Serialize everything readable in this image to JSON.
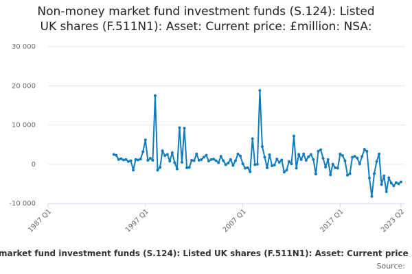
{
  "chart_data": {
    "type": "line",
    "title": [
      "Non-money market fund investment funds (S.124): Listed",
      "UK shares (F.511N1): Asset: Current price: £million: NSA:"
    ],
    "x_axis_label": "market fund investment funds (S.124): Listed UK shares (F.511N1): Asset: Current price",
    "source": "Source:",
    "x": [
      "1993 Q4",
      "1994 Q1",
      "1994 Q2",
      "1994 Q3",
      "1994 Q4",
      "1995 Q1",
      "1995 Q2",
      "1995 Q3",
      "1995 Q4",
      "1996 Q1",
      "1996 Q2",
      "1996 Q3",
      "1996 Q4",
      "1997 Q1",
      "1997 Q2",
      "1997 Q3",
      "1997 Q4",
      "1998 Q1",
      "1998 Q2",
      "1998 Q3",
      "1998 Q4",
      "1999 Q1",
      "1999 Q2",
      "1999 Q3",
      "1999 Q4",
      "2000 Q1",
      "2000 Q2",
      "2000 Q3",
      "2000 Q4",
      "2001 Q1",
      "2001 Q2",
      "2001 Q3",
      "2001 Q4",
      "2002 Q1",
      "2002 Q2",
      "2002 Q3",
      "2002 Q4",
      "2003 Q1",
      "2003 Q2",
      "2003 Q3",
      "2003 Q4",
      "2004 Q1",
      "2004 Q2",
      "2004 Q3",
      "2004 Q4",
      "2005 Q1",
      "2005 Q2",
      "2005 Q3",
      "2005 Q4",
      "2006 Q1",
      "2006 Q2",
      "2006 Q3",
      "2006 Q4",
      "2007 Q1",
      "2007 Q2",
      "2007 Q3",
      "2007 Q4",
      "2008 Q1",
      "2008 Q2",
      "2008 Q3",
      "2008 Q4",
      "2009 Q1",
      "2009 Q2",
      "2009 Q3",
      "2009 Q4",
      "2010 Q1",
      "2010 Q2",
      "2010 Q3",
      "2010 Q4",
      "2011 Q1",
      "2011 Q2",
      "2011 Q3",
      "2011 Q4",
      "2012 Q1",
      "2012 Q2",
      "2012 Q3",
      "2012 Q4",
      "2013 Q1",
      "2013 Q2",
      "2013 Q3",
      "2013 Q4",
      "2014 Q1",
      "2014 Q2",
      "2014 Q3",
      "2014 Q4",
      "2015 Q1",
      "2015 Q2",
      "2015 Q3",
      "2015 Q4",
      "2016 Q1",
      "2016 Q2",
      "2016 Q3",
      "2016 Q4",
      "2017 Q1",
      "2017 Q2",
      "2017 Q3",
      "2017 Q4",
      "2018 Q1",
      "2018 Q2",
      "2018 Q3",
      "2018 Q4",
      "2019 Q1",
      "2019 Q2",
      "2019 Q3",
      "2019 Q4",
      "2020 Q1",
      "2020 Q2",
      "2020 Q3",
      "2020 Q4",
      "2021 Q1",
      "2021 Q2",
      "2021 Q3",
      "2021 Q4",
      "2022 Q1",
      "2022 Q2",
      "2022 Q3",
      "2022 Q4",
      "2023 Q1",
      "2023 Q2"
    ],
    "series": [
      {
        "color": "#0f7bbd",
        "values": [
          2500,
          2300,
          1200,
          1400,
          1100,
          1200,
          700,
          900,
          -1500,
          1200,
          1100,
          1300,
          3200,
          6200,
          1000,
          1500,
          1000,
          17500,
          -1500,
          -800,
          3400,
          2200,
          2500,
          800,
          2900,
          400,
          -1200,
          9300,
          500,
          9200,
          -900,
          -800,
          1000,
          900,
          2600,
          1000,
          1200,
          1800,
          2300,
          800,
          1200,
          1300,
          900,
          400,
          2000,
          900,
          -100,
          300,
          1200,
          -300,
          900,
          2600,
          2100,
          100,
          -1000,
          -900,
          -1900,
          6500,
          -100,
          0,
          18800,
          4500,
          1800,
          -900,
          2400,
          -400,
          -200,
          1300,
          500,
          1100,
          -2000,
          -1500,
          700,
          100,
          7200,
          -1000,
          2500,
          1200,
          2600,
          1000,
          1900,
          2500,
          1200,
          -2500,
          3300,
          3700,
          1500,
          -700,
          1200,
          -2700,
          0,
          -900,
          -1000,
          2600,
          2200,
          900,
          -2800,
          -2400,
          1800,
          2000,
          1600,
          100,
          2000,
          3800,
          3300,
          -3500,
          -8200,
          -2400,
          700,
          2600,
          -5200,
          -3000,
          -7000,
          -3500,
          -4800,
          -5500,
          -4700,
          -5000,
          -4500
        ]
      }
    ],
    "xlim": [
      "1987 Q1",
      "2023 Q2"
    ],
    "xticks": [
      "1987 Q1",
      "1997 Q1",
      "2007 Q1",
      "2017 Q1",
      "2023 Q2"
    ],
    "ylim": [
      -10000,
      30000
    ],
    "yticks": [
      {
        "value": -10000,
        "label": "-10 000"
      },
      0,
      {
        "value": 10000,
        "label": "10 000"
      },
      {
        "value": 20000,
        "label": "20 000"
      },
      {
        "value": 30000,
        "label": "30 000"
      }
    ],
    "grid": true
  }
}
